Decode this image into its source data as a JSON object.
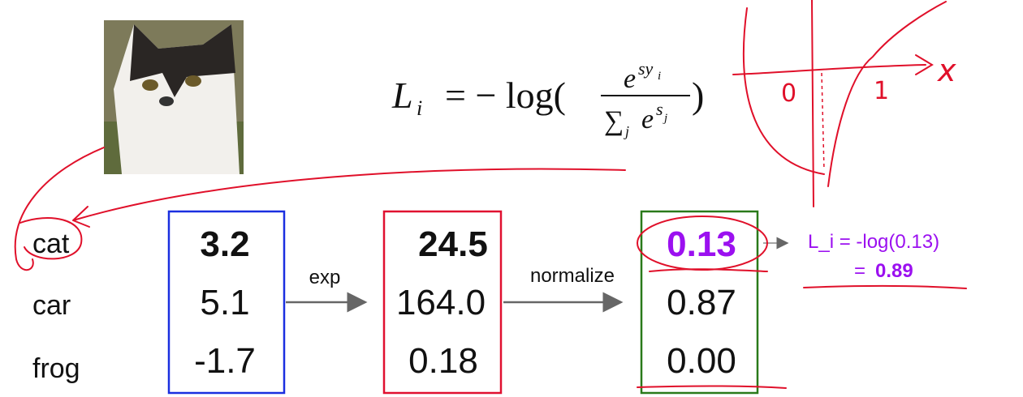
{
  "formula": {
    "lhs": "L",
    "lhs_sub": "i",
    "op": "= − log(",
    "num_base": "e",
    "num_exp": "sy",
    "num_exp_sub": "i",
    "den_sum": "∑",
    "den_sub": "j",
    "den_base": "e",
    "den_exp": "s",
    "den_exp_sub": "j",
    "close": ")"
  },
  "classes": [
    "cat",
    "car",
    "frog"
  ],
  "scores": [
    "3.2",
    "5.1",
    "-1.7"
  ],
  "exp_label": "exp",
  "exp_scores": [
    "24.5",
    "164.0",
    "0.18"
  ],
  "normalize_label": "normalize",
  "probabilities": [
    "0.13",
    "0.87",
    "0.00"
  ],
  "annotation": {
    "line1": "L_i = -log(0.13)",
    "line2_prefix": "=",
    "line2_value": "0.89"
  },
  "sketch_labels": [
    "0",
    "1",
    "x"
  ]
}
